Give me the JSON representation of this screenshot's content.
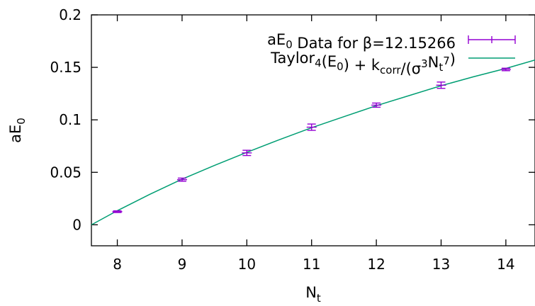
{
  "chart_data": {
    "type": "scatter",
    "xlabel": "N",
    "xlabel_sub": "t",
    "ylabel": "aE",
    "ylabel_sub": "0",
    "xlim": [
      7.6,
      14.45
    ],
    "ylim": [
      -0.02,
      0.2
    ],
    "xticks": [
      8,
      9,
      10,
      11,
      12,
      13,
      14
    ],
    "yticks": [
      0,
      0.05,
      0.1,
      0.15,
      0.2
    ],
    "ytick_labels": [
      "0",
      "0.05",
      "0.1",
      "0.15",
      "0.2"
    ],
    "grid": false,
    "legend_position": "top-right",
    "legend": [
      {
        "parts": [
          {
            "t": "aE",
            "s": "normal"
          },
          {
            "t": "0",
            "s": "sub"
          },
          {
            "t": " Data for β=12.15266",
            "s": "normal"
          }
        ],
        "color": "#9400d3",
        "kind": "errorbar"
      },
      {
        "parts": [
          {
            "t": "Taylor",
            "s": "normal"
          },
          {
            "t": "4",
            "s": "sub"
          },
          {
            "t": "(E",
            "s": "normal"
          },
          {
            "t": "0",
            "s": "sub"
          },
          {
            "t": ") + k",
            "s": "normal"
          },
          {
            "t": "corr",
            "s": "sub"
          },
          {
            "t": "/(σ",
            "s": "normal"
          },
          {
            "t": "3",
            "s": "sup"
          },
          {
            "t": "N",
            "s": "normal"
          },
          {
            "t": "t",
            "s": "sub"
          },
          {
            "t": "7",
            "s": "sup"
          },
          {
            "t": ")",
            "s": "normal"
          }
        ],
        "color": "#009e73",
        "kind": "line"
      }
    ],
    "series": [
      {
        "kind": "errorbar",
        "color": "#9400d3",
        "points": [
          {
            "x": 8,
            "y": 0.0125,
            "err": 0.0008
          },
          {
            "x": 9,
            "y": 0.043,
            "err": 0.0015
          },
          {
            "x": 10,
            "y": 0.0685,
            "err": 0.0025
          },
          {
            "x": 11,
            "y": 0.093,
            "err": 0.003
          },
          {
            "x": 12,
            "y": 0.114,
            "err": 0.002
          },
          {
            "x": 13,
            "y": 0.133,
            "err": 0.003
          },
          {
            "x": 14,
            "y": 0.148,
            "err": 0.0012
          }
        ]
      },
      {
        "kind": "line",
        "color": "#009e73",
        "points": [
          {
            "x": 7.6,
            "y": 0.0
          },
          {
            "x": 8.0,
            "y": 0.0135
          },
          {
            "x": 8.5,
            "y": 0.029
          },
          {
            "x": 9.0,
            "y": 0.0435
          },
          {
            "x": 9.5,
            "y": 0.0565
          },
          {
            "x": 10.0,
            "y": 0.069
          },
          {
            "x": 10.5,
            "y": 0.081
          },
          {
            "x": 11.0,
            "y": 0.0925
          },
          {
            "x": 11.5,
            "y": 0.103
          },
          {
            "x": 12.0,
            "y": 0.1135
          },
          {
            "x": 12.5,
            "y": 0.123
          },
          {
            "x": 13.0,
            "y": 0.1325
          },
          {
            "x": 13.5,
            "y": 0.141
          },
          {
            "x": 14.0,
            "y": 0.149
          },
          {
            "x": 14.45,
            "y": 0.157
          }
        ]
      }
    ]
  }
}
